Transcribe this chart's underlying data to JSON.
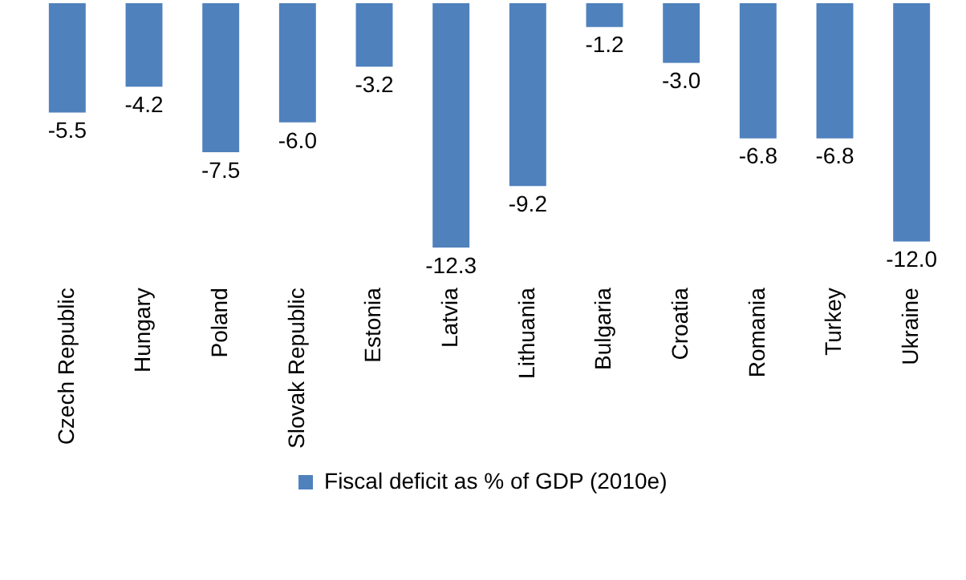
{
  "chart_data": {
    "type": "bar",
    "categories": [
      "Czech Republic",
      "Hungary",
      "Poland",
      "Slovak Republic",
      "Estonia",
      "Latvia",
      "Lithuania",
      "Bulgaria",
      "Croatia",
      "Romania",
      "Turkey",
      "Ukraine"
    ],
    "series": [
      {
        "name": "Fiscal deficit as % of GDP (2010e)",
        "color": "#4f81bd",
        "values": [
          -5.5,
          -4.2,
          -7.5,
          -6.0,
          -3.2,
          -12.3,
          -9.2,
          -1.2,
          -3.0,
          -6.8,
          -6.8,
          -12.0
        ],
        "value_labels": [
          "-5.5",
          "-4.2",
          "-7.5",
          "-6.0",
          "-3.2",
          "-12.3",
          "-9.2",
          "-1.2",
          "-3.0",
          "-6.8",
          "-6.8",
          "-12.0"
        ]
      }
    ],
    "relative": false,
    "legend": "bottom",
    "grid": false
  }
}
